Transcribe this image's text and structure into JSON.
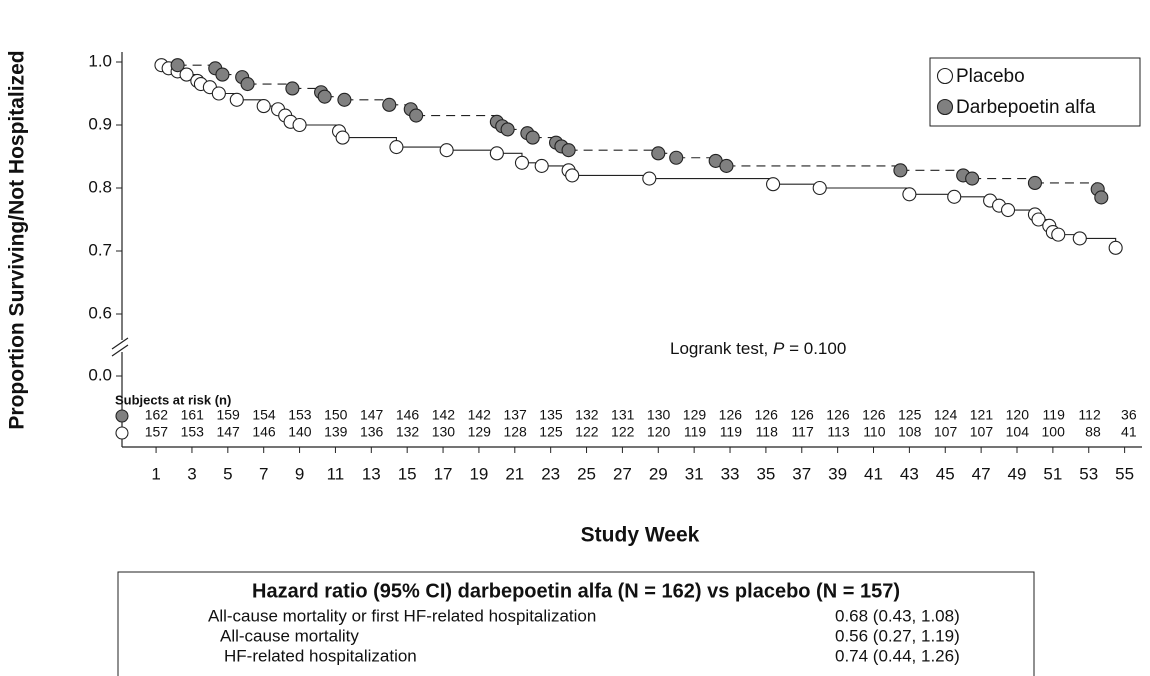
{
  "chart_data": {
    "type": "km_step",
    "ylabel": "Proportion Surviving/Not Hospitalized",
    "xlabel": "Study Week",
    "xlim": [
      -0.9,
      55.3
    ],
    "xticks": [
      1,
      3,
      5,
      7,
      9,
      11,
      13,
      15,
      17,
      19,
      21,
      23,
      25,
      27,
      29,
      31,
      33,
      35,
      37,
      39,
      41,
      43,
      45,
      47,
      49,
      51,
      53,
      55
    ],
    "ylim": [
      0.6,
      1.0
    ],
    "yticks": [
      {
        "value": 0,
        "label": "0.0"
      },
      0.6,
      0.7,
      0.8,
      0.9,
      {
        "value": 1,
        "label": "1.0"
      }
    ],
    "axis_break": true,
    "legend": "top-right",
    "series": [
      {
        "name": "Placebo",
        "color": "#ffffff",
        "line_style": "solid",
        "x": [
          1.3,
          1.7,
          2.2,
          2.7,
          3.3,
          3.5,
          4,
          4.5,
          5.5,
          7,
          7.8,
          8.2,
          8.5,
          9,
          11.2,
          11.4,
          14.4,
          17.2,
          20,
          21.4,
          22.5,
          24,
          24.2,
          28.5,
          35.4,
          38,
          43,
          45.5,
          47.5,
          48,
          48.5,
          50,
          50.2,
          50.8,
          51,
          51.3,
          52.5,
          54.5
        ],
        "values": [
          0.995,
          0.99,
          0.985,
          0.98,
          0.97,
          0.965,
          0.96,
          0.95,
          0.94,
          0.93,
          0.925,
          0.915,
          0.905,
          0.9,
          0.89,
          0.88,
          0.865,
          0.86,
          0.855,
          0.84,
          0.835,
          0.828,
          0.82,
          0.815,
          0.806,
          0.8,
          0.79,
          0.786,
          0.78,
          0.772,
          0.765,
          0.758,
          0.75,
          0.74,
          0.73,
          0.726,
          0.72,
          0.705
        ]
      },
      {
        "name": "Darbepoetin alfa",
        "color": "#808080",
        "line_style": "dashed",
        "x": [
          2.2,
          4.3,
          4.7,
          5.8,
          6.1,
          8.6,
          10.2,
          10.4,
          11.5,
          14,
          15.2,
          15.5,
          20,
          20.3,
          20.6,
          21.7,
          22,
          23.3,
          23.6,
          24,
          29,
          30,
          32.2,
          32.8,
          42.5,
          46,
          46.5,
          50,
          53.5,
          53.7
        ],
        "values": [
          0.995,
          0.99,
          0.98,
          0.976,
          0.965,
          0.958,
          0.952,
          0.945,
          0.94,
          0.932,
          0.925,
          0.915,
          0.905,
          0.898,
          0.893,
          0.887,
          0.88,
          0.872,
          0.866,
          0.86,
          0.855,
          0.848,
          0.843,
          0.835,
          0.828,
          0.82,
          0.815,
          0.808,
          0.798,
          0.785
        ]
      }
    ],
    "annotation": {
      "prefix": "Logrank test,",
      "stat": "P",
      "rest": "= 0.100"
    },
    "risk_table": {
      "title": "Subjects at risk (n)",
      "rows": [
        [
          162,
          161,
          159,
          154,
          153,
          150,
          147,
          146,
          142,
          142,
          137,
          135,
          132,
          131,
          130,
          129,
          126,
          126,
          126,
          126,
          126,
          125,
          124,
          121,
          120,
          119,
          112,
          36
        ],
        [
          157,
          153,
          147,
          146,
          140,
          139,
          136,
          132,
          130,
          129,
          128,
          125,
          122,
          122,
          120,
          119,
          119,
          118,
          117,
          113,
          110,
          108,
          107,
          107,
          104,
          100,
          88,
          41
        ]
      ]
    }
  },
  "hazard_table": {
    "title": "Hazard ratio (95% CI) darbepoetin alfa (N = 162) vs placebo (N = 157)",
    "rows": [
      [
        "All-cause mortality or first HF-related hospitalization",
        "0.68 (0.43, 1.08)"
      ],
      [
        "All-cause mortality",
        "0.56 (0.27, 1.19)"
      ],
      [
        "HF-related hospitalization",
        "0.74 (0.44, 1.26)"
      ]
    ]
  }
}
